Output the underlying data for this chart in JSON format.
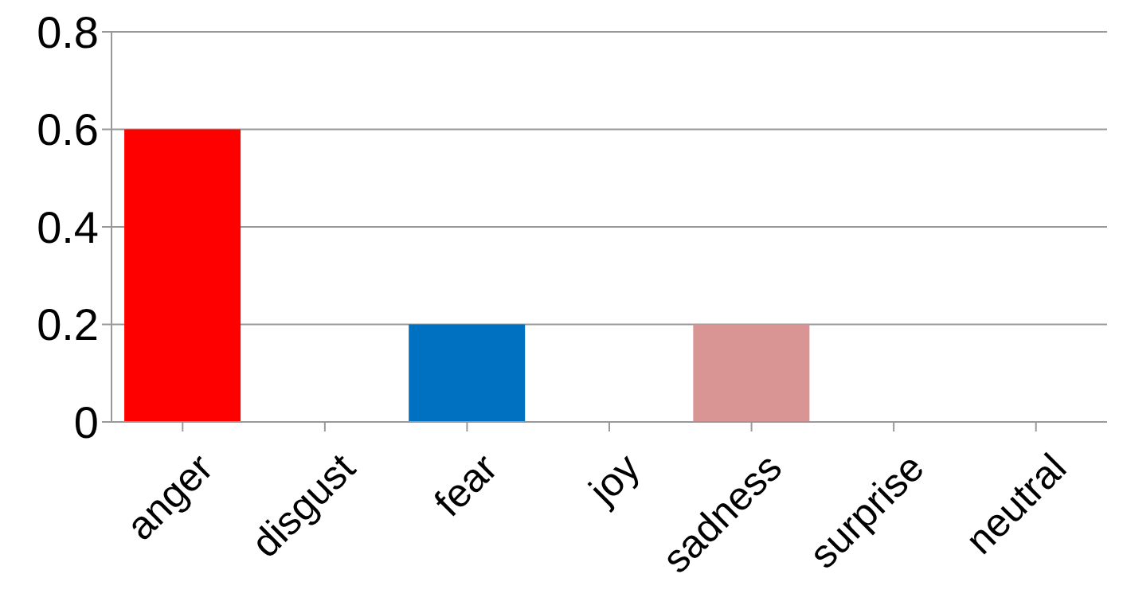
{
  "chart_data": {
    "type": "bar",
    "categories": [
      "anger",
      "disgust",
      "fear",
      "joy",
      "sadness",
      "surprise",
      "neutral"
    ],
    "values": [
      0.6,
      0,
      0.2,
      0,
      0.2,
      0,
      0
    ],
    "colors": [
      "#ff0000",
      "#ff0000",
      "#0070c0",
      "#0070c0",
      "#d99594",
      "#d99594",
      "#d99594"
    ],
    "ylim": [
      0,
      0.8
    ],
    "yticks": [
      0,
      0.2,
      0.4,
      0.6,
      0.8
    ],
    "grid": "y",
    "legend": false
  }
}
